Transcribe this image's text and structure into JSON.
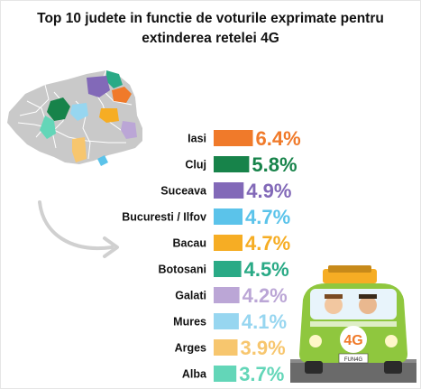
{
  "title_line1": "Top 10 judete in functie de voturile exprimate pentru",
  "title_line2": "extinderea retelei 4G",
  "chart_data": {
    "type": "bar",
    "title": "Top 10 judete in functie de voturile exprimate pentru extinderea retelei 4G",
    "categories": [
      "Iasi",
      "Cluj",
      "Suceava",
      "Bucuresti / Ilfov",
      "Bacau",
      "Botosani",
      "Galati",
      "Mures",
      "Arges",
      "Alba"
    ],
    "values": [
      6.4,
      5.8,
      4.9,
      4.7,
      4.7,
      4.5,
      4.2,
      4.1,
      3.9,
      3.7
    ],
    "value_labels": [
      "6.4%",
      "5.8%",
      "4.9%",
      "4.7%",
      "4.7%",
      "4.5%",
      "4.2%",
      "4.1%",
      "3.9%",
      "3.7%"
    ],
    "colors": [
      "#f07a2a",
      "#17834a",
      "#8269b8",
      "#5bc3ea",
      "#f6ad24",
      "#2aaa86",
      "#bba6d6",
      "#97d6f0",
      "#f7c66e",
      "#63d6b8"
    ],
    "units": "%",
    "grid": false,
    "legend": "none"
  },
  "map_colors": {
    "base": "#c9c9c9",
    "outline": "#ffffff"
  },
  "illustration": {
    "badge_text": "4G",
    "plate_text": "FUN4G",
    "van_body": "#8fc73e",
    "badge_color": "#f07a2a"
  }
}
